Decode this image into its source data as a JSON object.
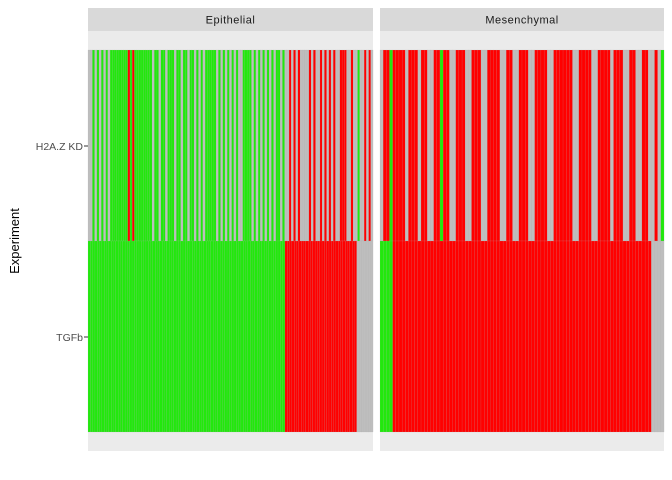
{
  "chart_data": {
    "type": "heatmap",
    "ylabel": "Experiment",
    "xlabel": "",
    "facets": [
      "Epithelial",
      "Mesenchymal"
    ],
    "rows": [
      "H2A.Z KD",
      "TGFb"
    ],
    "legend": "none",
    "colors": {
      "up": "#22E80D",
      "down": "#FF0000",
      "none": "#BEBEBE"
    },
    "cells": {
      "Epithelial": {
        "H2A.Z KD": "NNUNUNUNUNUUUUUUUUDUDUUUUUUUUNUUNUUNUUUNUUNUUNUUNUNUNUUUUUNUNUNUNUNUNNUUUUNUNUNUNUNUNUUNUNNDNDNDNNNNDNDNNDNDNDNDNNDDDNNDNNUNNDNDN",
        "TGFb": "UUUUUUUUUUUUUUUUUUUUUUUUUUUUUUUUUUUUUUUUUUUUUUUUUUUUUUUUUUUUUUUUUUUUUUUUUUUUUUUUUUUUUDDDDDDDDDDDDDDDDDDDDDDDDDDDDDDDNNNNNNN"
      },
      "Mesenchymal": {
        "H2A.Z KD": "NDDUDDDDNDDDNDDNNDDUDDNNDDDNNDDDNNDDDDNNDDNNDDDNNDDDDNNDDDDDDNNDDDDNNDDDDNDDDNNDDNNDDNNDNU",
        "TGFb": "UUUUDDDDDDDDDDDDDDDDDDDDDDDDDDDDDDDDDDDDDDDDDDDDDDDDDDDDDDDDDDDDDDDDDDDDDDDDDDDDDDDDDDNNNN"
      }
    }
  }
}
